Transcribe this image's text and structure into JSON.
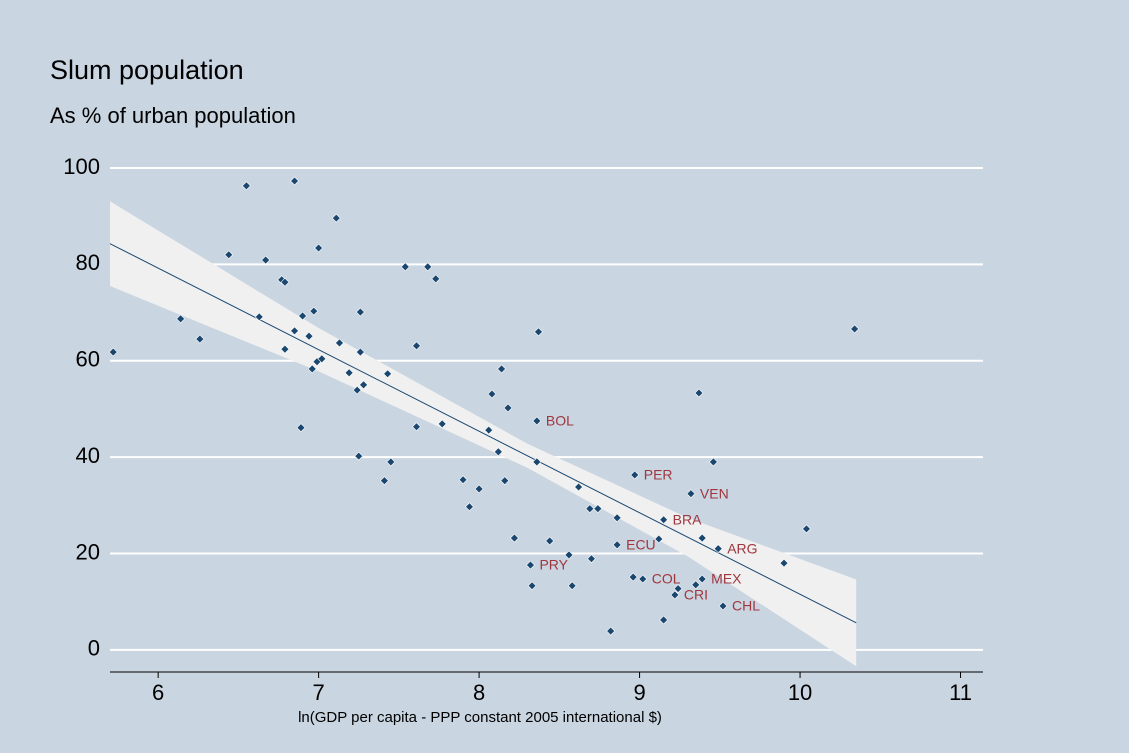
{
  "chart_data": {
    "type": "scatter",
    "title": "Slum population",
    "subtitle": "As % of urban population",
    "xlabel": "ln(GDP per capita - PPP constant 2005 international $)",
    "x": [
      5.72,
      6.14,
      6.26,
      6.44,
      6.55,
      6.67,
      6.63,
      6.77,
      6.79,
      6.79,
      6.85,
      6.85,
      6.9,
      6.89,
      6.94,
      6.97,
      6.96,
      6.99,
      7.0,
      7.02,
      7.11,
      7.13,
      7.19,
      7.24,
      7.25,
      7.26,
      7.26,
      7.28,
      7.41,
      7.43,
      7.45,
      7.54,
      7.61,
      7.61,
      7.68,
      7.73,
      7.77,
      7.9,
      7.94,
      8.0,
      8.06,
      8.08,
      8.12,
      8.14,
      8.16,
      8.18,
      8.22,
      8.32,
      8.33,
      8.36,
      8.36,
      8.37,
      8.44,
      8.56,
      8.58,
      8.62,
      8.69,
      8.7,
      8.74,
      8.82,
      8.86,
      8.86,
      8.97,
      8.96,
      9.02,
      9.12,
      9.15,
      9.15,
      9.22,
      9.24,
      9.32,
      9.35,
      9.37,
      9.39,
      9.39,
      9.46,
      9.49,
      9.52,
      9.9,
      10.04,
      10.34
    ],
    "values": [
      61.8,
      68.7,
      64.5,
      82,
      96.3,
      80.9,
      69.1,
      76.8,
      76.3,
      62.4,
      97.3,
      66.2,
      69.3,
      46.1,
      65.1,
      70.3,
      58.3,
      59.8,
      83.4,
      60.4,
      89.6,
      63.7,
      57.5,
      53.9,
      40.2,
      70.1,
      61.8,
      55.0,
      35.1,
      57.3,
      39.0,
      79.5,
      63.1,
      46.3,
      79.5,
      77.0,
      46.9,
      35.3,
      29.7,
      33.4,
      45.6,
      53.1,
      41.1,
      58.3,
      35.1,
      50.2,
      23.2,
      17.6,
      13.3,
      47.5,
      39.0,
      66.0,
      22.6,
      19.7,
      13.3,
      33.8,
      29.3,
      18.9,
      29.3,
      3.9,
      27.4,
      21.8,
      36.3,
      15.1,
      14.7,
      23.0,
      27.0,
      6.2,
      11.4,
      12.7,
      32.4,
      13.5,
      53.3,
      23.2,
      14.7,
      39.0,
      21.0,
      9.1,
      18.0,
      25.1,
      66.6
    ],
    "point_labels": [
      null,
      null,
      null,
      null,
      null,
      null,
      null,
      null,
      null,
      null,
      null,
      null,
      null,
      null,
      null,
      null,
      null,
      null,
      null,
      null,
      null,
      null,
      null,
      null,
      null,
      null,
      null,
      null,
      null,
      null,
      null,
      null,
      null,
      null,
      null,
      null,
      null,
      null,
      null,
      null,
      null,
      null,
      null,
      null,
      null,
      null,
      null,
      "PRY",
      null,
      "BOL",
      null,
      null,
      null,
      null,
      null,
      null,
      null,
      null,
      null,
      null,
      null,
      "ECU",
      "PER",
      null,
      "COL",
      null,
      "BRA",
      null,
      "CRI",
      null,
      "VEN",
      null,
      null,
      null,
      "MEX",
      null,
      "ARG",
      "CHL",
      null,
      null,
      null
    ],
    "color": "#1a476f",
    "label_color": "#a0363e",
    "fit": {
      "x": [
        5.7,
        10.35
      ],
      "values": [
        84.3,
        5.6
      ],
      "color": "#1a476f"
    },
    "band": {
      "x": [
        5.7,
        7,
        8.3,
        9.3,
        10.35
      ],
      "upper": [
        93.1,
        66.8,
        42.8,
        27.4,
        14.6
      ],
      "lower": [
        75.5,
        57.8,
        37.8,
        19.4,
        -3.4
      ],
      "color": "#f0f0f0"
    },
    "xlim": [
      5.7,
      11.14
    ],
    "ylim": [
      -4.6,
      102.7
    ],
    "xticks": [
      6,
      7,
      8,
      9,
      10,
      11
    ],
    "yticks": [
      0,
      20,
      40,
      60,
      80,
      100
    ],
    "grid": true
  }
}
